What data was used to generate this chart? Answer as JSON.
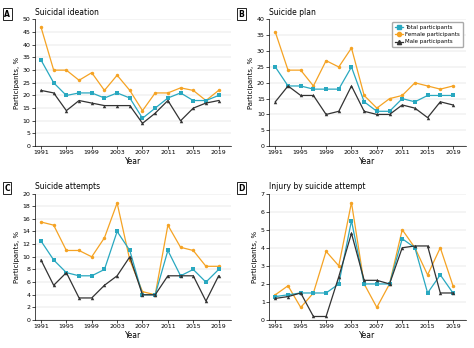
{
  "years": [
    1991,
    1993,
    1995,
    1997,
    1999,
    2001,
    2003,
    2005,
    2007,
    2009,
    2011,
    2013,
    2015,
    2017,
    2019
  ],
  "A": {
    "title": "Suicidal ideation",
    "ylabel": "Participants, %",
    "ylim": [
      0,
      50
    ],
    "yticks": [
      0,
      5,
      10,
      15,
      20,
      25,
      30,
      35,
      40,
      45,
      50
    ],
    "total": [
      34,
      25,
      20,
      21,
      21,
      19,
      21,
      19,
      11,
      15,
      19,
      21,
      18,
      18,
      20
    ],
    "female": [
      47,
      30,
      30,
      26,
      29,
      22,
      28,
      22,
      14,
      21,
      21,
      23,
      22,
      18,
      22
    ],
    "male": [
      22,
      21,
      14,
      18,
      17,
      16,
      16,
      16,
      9,
      13,
      18,
      10,
      15,
      17,
      18
    ]
  },
  "B": {
    "title": "Suicide plan",
    "ylabel": "Participants, %",
    "ylim": [
      0,
      40
    ],
    "yticks": [
      0,
      5,
      10,
      15,
      20,
      25,
      30,
      35,
      40
    ],
    "total": [
      25,
      19,
      19,
      18,
      18,
      18,
      25,
      14,
      11,
      11,
      15,
      14,
      16,
      16,
      16
    ],
    "female": [
      36,
      24,
      24,
      19,
      27,
      25,
      31,
      16,
      12,
      15,
      16,
      20,
      19,
      18,
      19
    ],
    "male": [
      14,
      19,
      16,
      16,
      10,
      11,
      19,
      11,
      10,
      10,
      13,
      12,
      9,
      14,
      13
    ]
  },
  "C": {
    "title": "Suicide attempts",
    "ylabel": "Participants, %",
    "ylim": [
      0,
      20
    ],
    "yticks": [
      0,
      2,
      4,
      6,
      8,
      10,
      12,
      14,
      16,
      18,
      20
    ],
    "total": [
      12.5,
      9.5,
      7.5,
      7,
      7,
      8,
      14,
      11,
      4,
      4,
      11,
      7,
      8,
      6,
      8
    ],
    "female": [
      15.5,
      15,
      11,
      11,
      10,
      13,
      18.5,
      9.5,
      4.5,
      4,
      15,
      11.5,
      11,
      8.5,
      8.5
    ],
    "male": [
      9.5,
      5.5,
      7.5,
      3.5,
      3.5,
      5.5,
      7,
      10,
      4,
      4,
      7,
      7,
      7,
      3,
      7
    ]
  },
  "D": {
    "title": "Injury by suicide attempt",
    "ylabel": "Participants, %",
    "ylim": [
      0,
      7
    ],
    "yticks": [
      0,
      1,
      2,
      3,
      4,
      5,
      6,
      7
    ],
    "total": [
      1.3,
      1.4,
      1.5,
      1.5,
      1.5,
      2.0,
      5.5,
      2.0,
      2.0,
      2.0,
      4.5,
      4.0,
      1.5,
      2.5,
      1.5
    ],
    "female": [
      1.4,
      1.9,
      0.7,
      1.5,
      3.8,
      3.0,
      6.5,
      2.0,
      0.7,
      2.0,
      5.0,
      4.0,
      2.5,
      4.0,
      1.9
    ],
    "male": [
      1.2,
      1.3,
      1.5,
      0.2,
      0.2,
      2.4,
      4.8,
      2.2,
      2.2,
      2.0,
      4.0,
      4.1,
      4.1,
      1.5,
      1.5
    ]
  },
  "colors": {
    "total": "#29a8c0",
    "female": "#f5a324",
    "male": "#333333"
  },
  "xticks": [
    1991,
    1995,
    1999,
    2003,
    2007,
    2011,
    2015,
    2019
  ]
}
